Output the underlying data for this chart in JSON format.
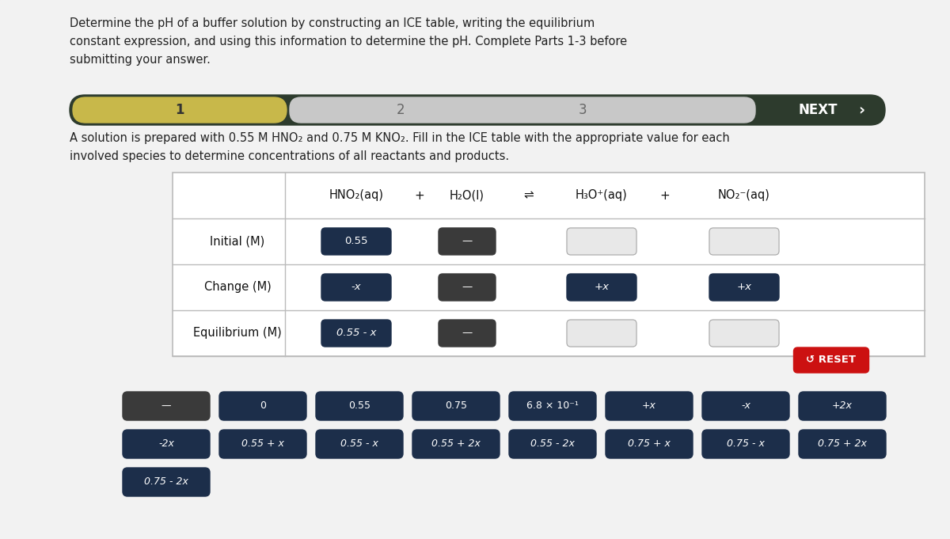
{
  "bg_color": "#d8d8d8",
  "title_text": "Determine the pH of a buffer solution by constructing an ICE table, writing the equilibrium\nconstant expression, and using this information to determine the pH. Complete Parts 1-3 before\nsubmitting your answer.",
  "problem_text": "A solution is prepared with 0.55 M HNO₂ and 0.75 M KNO₂. Fill in the ICE table with the appropriate value for each\ninvolved species to determine concentrations of all reactants and products.",
  "nav_bg": "#2d3b2d",
  "nav_section1_bg": "#c8b84a",
  "nav_section1_label": "1",
  "nav_section2_label": "2",
  "nav_section3_label": "3",
  "nav_next_label": "NEXT",
  "nav_light_bg": "#d0d0d0",
  "table_row_labels": [
    "Initial (M)",
    "Change (M)",
    "Equilibrium (M)"
  ],
  "table_header": [
    "HNO₂(aq)",
    "+",
    "H₂O(l)",
    "⇌",
    "H₃O⁺(aq)",
    "+",
    "NO₂⁻(aq)"
  ],
  "dark_btn": "#1c2e4a",
  "dark_gray_btn": "#3a3a3a",
  "light_btn": "#d8d8d8",
  "white_btn": "#f0f0f0",
  "reset_color": "#cc1111",
  "reset_text": "↺ RESET",
  "answer_row1": [
    "—",
    "0",
    "0.55",
    "0.75",
    "6.8 × 10⁻¹",
    "+x",
    "-x",
    "+2x"
  ],
  "answer_row2": [
    "-2x",
    "0.55 + x",
    "0.55 - x",
    "0.55 + 2x",
    "0.55 - 2x",
    "0.75 + x",
    "0.75 - x",
    "0.75 + 2x"
  ],
  "answer_row3": [
    "0.75 - 2x"
  ]
}
